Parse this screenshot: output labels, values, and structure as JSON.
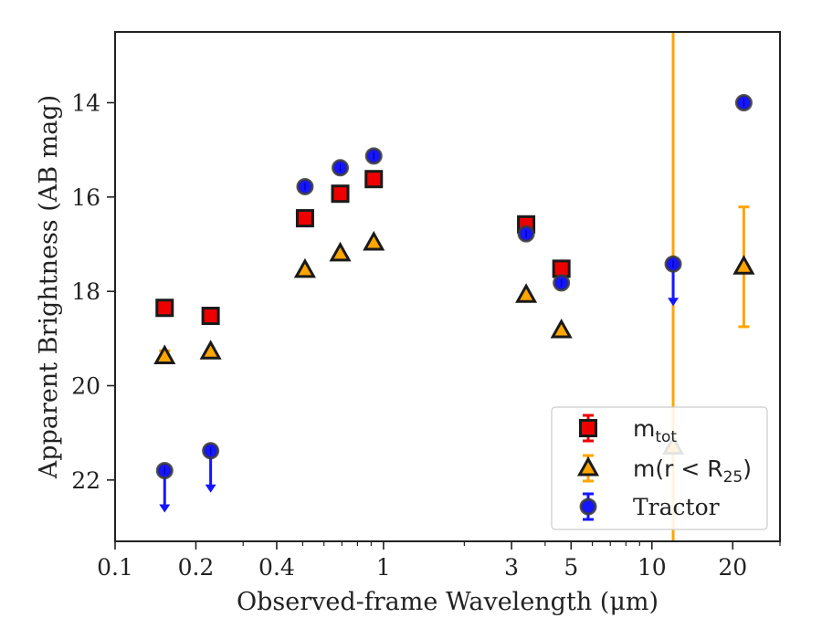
{
  "chart_data": {
    "type": "scatter",
    "xscale": "log",
    "xlim": [
      0.1,
      30
    ],
    "ylim": [
      23.3,
      12.5
    ],
    "y_inverted": true,
    "xlabel": "Observed-frame Wavelength (μm)",
    "ylabel": "Apparent Brightness (AB mag)",
    "xticks": [
      0.1,
      0.2,
      0.4,
      1,
      3,
      5,
      10,
      20
    ],
    "xtick_labels": [
      "0.1",
      "0.2",
      "0.4",
      "1",
      "3",
      "5",
      "10",
      "20"
    ],
    "yticks": [
      14,
      16,
      18,
      20,
      22
    ],
    "ytick_labels": [
      "14",
      "16",
      "18",
      "20",
      "22"
    ],
    "legend_position": "lower-right",
    "series": [
      {
        "name": "m_tot",
        "legend_label": "m",
        "legend_sub": "tot",
        "marker": "square",
        "color": "#ee0000",
        "edge": "#1a1a1a",
        "points": [
          {
            "x": 0.153,
            "y": 18.35
          },
          {
            "x": 0.227,
            "y": 18.52
          },
          {
            "x": 0.51,
            "y": 16.45
          },
          {
            "x": 0.69,
            "y": 15.93
          },
          {
            "x": 0.92,
            "y": 15.62
          },
          {
            "x": 3.4,
            "y": 16.58
          },
          {
            "x": 4.6,
            "y": 17.52
          }
        ]
      },
      {
        "name": "m(r<R_25)",
        "legend_label": "m(r < R",
        "legend_sub": "25",
        "legend_tail": ")",
        "marker": "triangle",
        "color": "#ffa500",
        "edge": "#1a1a1a",
        "points": [
          {
            "x": 0.153,
            "y": 19.38,
            "err": 0.12
          },
          {
            "x": 0.227,
            "y": 19.28
          },
          {
            "x": 0.51,
            "y": 17.55
          },
          {
            "x": 0.69,
            "y": 17.2
          },
          {
            "x": 0.92,
            "y": 16.97
          },
          {
            "x": 3.4,
            "y": 18.08
          },
          {
            "x": 4.6,
            "y": 18.83
          },
          {
            "x": 12.0,
            "y": 21.3,
            "err": 200
          },
          {
            "x": 22.0,
            "y": 17.48,
            "err": 1.27
          }
        ]
      },
      {
        "name": "Tractor",
        "legend_label": "Tractor",
        "marker": "circle",
        "color": "#1515ff",
        "edge": "#3a3a3a",
        "points": [
          {
            "x": 0.153,
            "y": 21.8,
            "upper_limit": true
          },
          {
            "x": 0.227,
            "y": 21.38,
            "upper_limit": true
          },
          {
            "x": 0.51,
            "y": 15.78
          },
          {
            "x": 0.69,
            "y": 15.38
          },
          {
            "x": 0.92,
            "y": 15.13
          },
          {
            "x": 3.4,
            "y": 16.78
          },
          {
            "x": 4.6,
            "y": 17.82
          },
          {
            "x": 12.0,
            "y": 17.42,
            "upper_limit": true
          },
          {
            "x": 22.0,
            "y": 14.0
          }
        ]
      }
    ]
  }
}
